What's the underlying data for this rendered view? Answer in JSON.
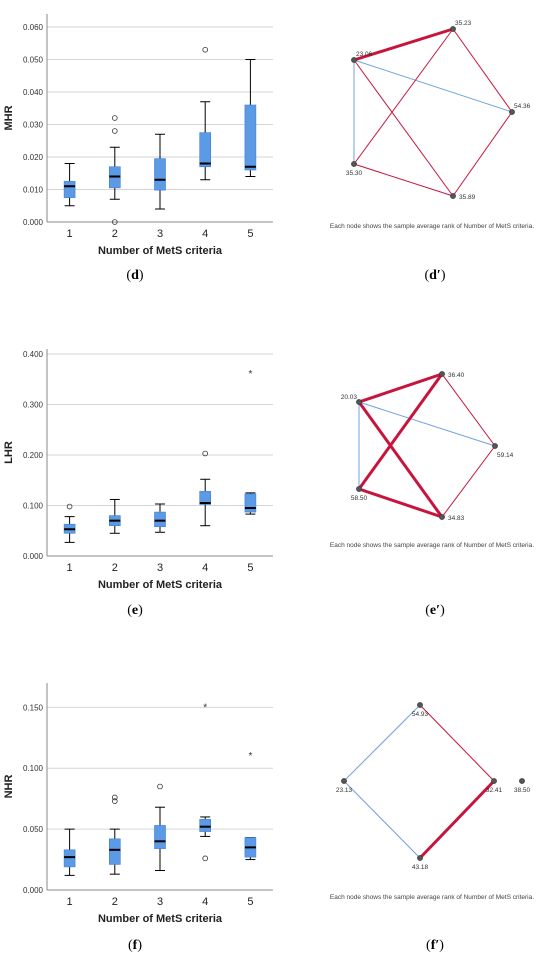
{
  "chart_data": [
    {
      "id": "d",
      "type": "box",
      "ylabel": "MHR",
      "xlabel": "Number of MetS criteria",
      "categories": [
        "1",
        "2",
        "3",
        "4",
        "5"
      ],
      "yticks": [
        "0.000",
        "0.010",
        "0.020",
        "0.030",
        "0.040",
        "0.050",
        "0.060"
      ],
      "ylim": [
        0,
        0.064
      ],
      "boxes": [
        {
          "min": 0.005,
          "q1": 0.0075,
          "median": 0.011,
          "q3": 0.0125,
          "max": 0.018,
          "outliers": [],
          "extremes": []
        },
        {
          "min": 0.007,
          "q1": 0.0105,
          "median": 0.014,
          "q3": 0.017,
          "max": 0.023,
          "outliers": [
            0.032,
            0.028,
            0.0
          ],
          "extremes": []
        },
        {
          "min": 0.004,
          "q1": 0.0098,
          "median": 0.013,
          "q3": 0.0195,
          "max": 0.027,
          "outliers": [],
          "extremes": []
        },
        {
          "min": 0.013,
          "q1": 0.017,
          "median": 0.018,
          "q3": 0.0275,
          "max": 0.037,
          "outliers": [
            0.053
          ],
          "extremes": []
        },
        {
          "min": 0.014,
          "q1": 0.016,
          "median": 0.017,
          "q3": 0.036,
          "max": 0.05,
          "outliers": [],
          "extremes": []
        }
      ],
      "caption_letter": "d"
    },
    {
      "id": "e",
      "type": "box",
      "ylabel": "LHR",
      "xlabel": "Number of MetS criteria",
      "categories": [
        "1",
        "2",
        "3",
        "4",
        "5"
      ],
      "yticks": [
        "0.000",
        "0.100",
        "0.200",
        "0.300",
        "0.400"
      ],
      "ylim": [
        0,
        0.41
      ],
      "boxes": [
        {
          "min": 0.027,
          "q1": 0.045,
          "median": 0.053,
          "q3": 0.063,
          "max": 0.078,
          "outliers": [
            0.098
          ],
          "extremes": []
        },
        {
          "min": 0.045,
          "q1": 0.06,
          "median": 0.07,
          "q3": 0.08,
          "max": 0.112,
          "outliers": [],
          "extremes": []
        },
        {
          "min": 0.047,
          "q1": 0.058,
          "median": 0.07,
          "q3": 0.087,
          "max": 0.103,
          "outliers": [],
          "extremes": []
        },
        {
          "min": 0.06,
          "q1": 0.102,
          "median": 0.105,
          "q3": 0.128,
          "max": 0.152,
          "outliers": [
            0.203
          ],
          "extremes": []
        },
        {
          "min": 0.083,
          "q1": 0.087,
          "median": 0.095,
          "q3": 0.123,
          "max": 0.125,
          "outliers": [],
          "extremes": [
            0.36
          ]
        }
      ],
      "caption_letter": "e"
    },
    {
      "id": "f",
      "type": "box",
      "ylabel": "NHR",
      "xlabel": "Number of MetS criteria",
      "categories": [
        "1",
        "2",
        "3",
        "4",
        "5"
      ],
      "yticks": [
        "0.000",
        "0.050",
        "0.100",
        "0.150"
      ],
      "ylim": [
        0,
        0.17
      ],
      "boxes": [
        {
          "min": 0.012,
          "q1": 0.019,
          "median": 0.027,
          "q3": 0.033,
          "max": 0.05,
          "outliers": [],
          "extremes": []
        },
        {
          "min": 0.013,
          "q1": 0.021,
          "median": 0.033,
          "q3": 0.042,
          "max": 0.05,
          "outliers": [
            0.076,
            0.073
          ],
          "extremes": []
        },
        {
          "min": 0.016,
          "q1": 0.034,
          "median": 0.04,
          "q3": 0.053,
          "max": 0.068,
          "outliers": [
            0.085
          ],
          "extremes": []
        },
        {
          "min": 0.044,
          "q1": 0.048,
          "median": 0.052,
          "q3": 0.058,
          "max": 0.06,
          "outliers": [
            0.026
          ],
          "extremes": [
            0.15
          ]
        },
        {
          "min": 0.025,
          "q1": 0.027,
          "median": 0.035,
          "q3": 0.043,
          "max": 0.043,
          "outliers": [],
          "extremes": [
            0.11
          ]
        }
      ],
      "caption_letter": "f"
    },
    {
      "id": "d-prime",
      "type": "network",
      "note": "Each node shows the sample average rank of Number of MetS criteria.",
      "nodes": [
        {
          "id": "n1",
          "label": "23.06"
        },
        {
          "id": "n2",
          "label": "35.23"
        },
        {
          "id": "n3",
          "label": "54.36"
        },
        {
          "id": "n4",
          "label": "35.89"
        },
        {
          "id": "n5",
          "label": "35.30"
        }
      ],
      "edges": [
        {
          "from": "n1",
          "to": "n2",
          "kind": "significant-strong"
        },
        {
          "from": "n1",
          "to": "n3",
          "kind": "blue"
        },
        {
          "from": "n1",
          "to": "n4",
          "kind": "significant"
        },
        {
          "from": "n1",
          "to": "n5",
          "kind": "blue"
        },
        {
          "from": "n2",
          "to": "n3",
          "kind": "significant"
        },
        {
          "from": "n2",
          "to": "n5",
          "kind": "significant"
        },
        {
          "from": "n3",
          "to": "n4",
          "kind": "significant"
        },
        {
          "from": "n4",
          "to": "n5",
          "kind": "significant"
        }
      ],
      "caption_letter": "d′"
    },
    {
      "id": "e-prime",
      "type": "network",
      "note": "Each node shows the sample average rank of Number of MetS criteria.",
      "nodes": [
        {
          "id": "n1",
          "label": "20.03"
        },
        {
          "id": "n2",
          "label": "36.40"
        },
        {
          "id": "n3",
          "label": "59.14"
        },
        {
          "id": "n4",
          "label": "34.83"
        },
        {
          "id": "n5",
          "label": "58.50"
        }
      ],
      "edges": [
        {
          "from": "n1",
          "to": "n2",
          "kind": "significant-strong"
        },
        {
          "from": "n1",
          "to": "n3",
          "kind": "blue"
        },
        {
          "from": "n1",
          "to": "n4",
          "kind": "significant-strong"
        },
        {
          "from": "n1",
          "to": "n5",
          "kind": "blue"
        },
        {
          "from": "n2",
          "to": "n3",
          "kind": "significant"
        },
        {
          "from": "n2",
          "to": "n5",
          "kind": "significant-strong"
        },
        {
          "from": "n3",
          "to": "n4",
          "kind": "significant"
        },
        {
          "from": "n4",
          "to": "n5",
          "kind": "significant-strong"
        }
      ],
      "caption_letter": "e′"
    },
    {
      "id": "f-prime",
      "type": "network",
      "note": "Each node shows the sample average rank of Number of MetS criteria.",
      "nodes": [
        {
          "id": "n1",
          "label": "54.93"
        },
        {
          "id": "n2",
          "label": "23.13"
        },
        {
          "id": "n3",
          "label": "32.41"
        },
        {
          "id": "n4",
          "label": "43.18"
        },
        {
          "id": "n5",
          "label": "38.50"
        }
      ],
      "edges": [
        {
          "from": "n1",
          "to": "n2",
          "kind": "blue"
        },
        {
          "from": "n1",
          "to": "n3",
          "kind": "significant"
        },
        {
          "from": "n2",
          "to": "n4",
          "kind": "blue"
        },
        {
          "from": "n3",
          "to": "n4",
          "kind": "significant-strong"
        }
      ],
      "caption_letter": "f′"
    }
  ],
  "colors": {
    "box_fill": "#5c9ae6",
    "box_stroke": "#3f7fd1",
    "grid": "#d6d6d6",
    "sig_edge": "#c8143c",
    "ns_edge": "#6fa3dd",
    "node": "#555555"
  }
}
